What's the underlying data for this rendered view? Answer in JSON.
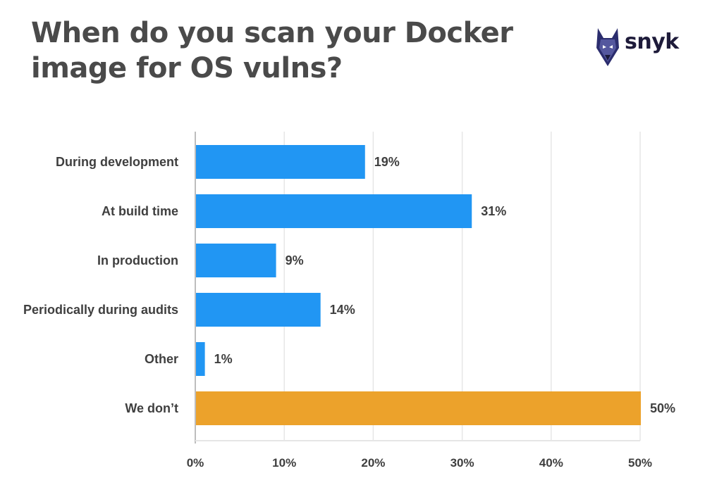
{
  "title": "When do you scan your Docker image for OS vulns?",
  "logo": {
    "text": "snyk",
    "icon": "snyk-dog-logo"
  },
  "colors": {
    "primary_bar": "#2196f3",
    "highlight_bar": "#eca22b",
    "grid": "#e6e6e6",
    "axis": "#bdbdbd",
    "text": "#3f3f3f"
  },
  "chart_data": {
    "type": "bar",
    "orientation": "horizontal",
    "title": "When do you scan your Docker image for OS vulns?",
    "categories": [
      "During development",
      "At build time",
      "In production",
      "Periodically during audits",
      "Other",
      "We don’t"
    ],
    "values": [
      19,
      31,
      9,
      14,
      1,
      50
    ],
    "value_labels": [
      "19%",
      "31%",
      "9%",
      "14%",
      "1%",
      "50%"
    ],
    "highlight_index": 5,
    "xlim": [
      0,
      50
    ],
    "xticks": [
      0,
      10,
      20,
      30,
      40,
      50
    ],
    "xtick_labels": [
      "0%",
      "10%",
      "20%",
      "30%",
      "40%",
      "50%"
    ],
    "grid": true,
    "legend": "none"
  }
}
